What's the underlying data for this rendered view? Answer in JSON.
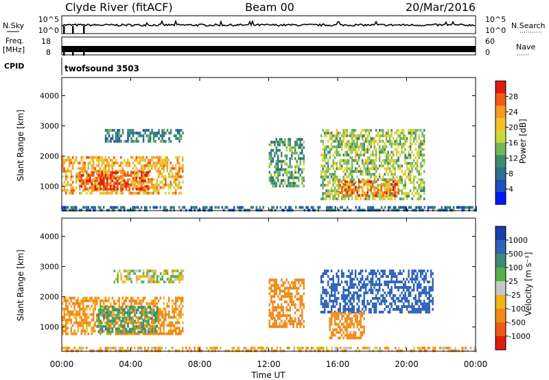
{
  "header": {
    "station": "Clyde River (fitACF)",
    "beam": "Beam 00",
    "date": "20/Mar/2016"
  },
  "strips": {
    "nsky": {
      "left_label": "N.Sky",
      "right_label": "N.Search",
      "ticks_left": [
        "10^5",
        "10^0"
      ],
      "ticks_right": [
        "10^5",
        "10^0"
      ]
    },
    "freq": {
      "left_label_1": "Freq.",
      "left_label_2": "[MHz]",
      "right_label": "Nave",
      "ticks_left": [
        "18",
        "8"
      ],
      "ticks_right": [
        "60",
        "0"
      ]
    },
    "cpid": {
      "label": "CPID",
      "program": "twofsound 3503"
    }
  },
  "chart_data": [
    {
      "type": "heatmap",
      "name": "power",
      "xlabel": "Time UT",
      "ylabel": "Slant Range [km]",
      "xlim": [
        0,
        24
      ],
      "ylim": [
        200,
        4600
      ],
      "x_ticks": [
        "00:00",
        "04:00",
        "08:00",
        "12:00",
        "16:00",
        "20:00",
        "00:00"
      ],
      "y_ticks": [
        1000,
        2000,
        3000,
        4000
      ],
      "colorbar": {
        "label": "Power [dB]",
        "ticks": [
          4,
          8,
          12,
          16,
          20,
          24,
          28
        ],
        "range": [
          0,
          32
        ],
        "colors": [
          "#0018ff",
          "#1f4fb8",
          "#2f6f8f",
          "#3f8a70",
          "#74b85a",
          "#c9d83a",
          "#f4c02a",
          "#f59a22",
          "#ef5a19",
          "#dd1a12"
        ]
      },
      "regions": [
        {
          "t0": 0.0,
          "t1": 7.0,
          "r0": 800,
          "r1": 2000,
          "value": 22
        },
        {
          "t0": 1.0,
          "t1": 5.0,
          "r0": 900,
          "r1": 1500,
          "value": 28
        },
        {
          "t0": 2.5,
          "t1": 7.0,
          "r0": 2500,
          "r1": 2900,
          "value": 10
        },
        {
          "t0": 12.0,
          "t1": 14.0,
          "r0": 1000,
          "r1": 2600,
          "value": 12
        },
        {
          "t0": 15.0,
          "t1": 21.0,
          "r0": 600,
          "r1": 2900,
          "value": 16
        },
        {
          "t0": 16.0,
          "t1": 19.5,
          "r0": 700,
          "r1": 1200,
          "value": 26
        },
        {
          "t0": 0.0,
          "t1": 24.0,
          "r0": 200,
          "r1": 350,
          "value": 8
        }
      ]
    },
    {
      "type": "heatmap",
      "name": "velocity",
      "xlabel": "Time UT",
      "ylabel": "Slant Range [km]",
      "xlim": [
        0,
        24
      ],
      "ylim": [
        200,
        4600
      ],
      "x_ticks": [
        "00:00",
        "04:00",
        "08:00",
        "12:00",
        "16:00",
        "20:00",
        "00:00"
      ],
      "y_ticks": [
        1000,
        2000,
        3000,
        4000
      ],
      "colorbar": {
        "label": "Velocity [m s⁻¹]",
        "ticks": [
          "1000",
          "500",
          "100",
          "25",
          "-25",
          "-100",
          "-500",
          "-1000"
        ],
        "colors": [
          "#1a3fa8",
          "#2f62b8",
          "#3f8a70",
          "#57b04a",
          "#c8c8c8",
          "#f2b418",
          "#f08a1a",
          "#ee5a18",
          "#e01a12"
        ]
      },
      "regions": [
        {
          "t0": 0.0,
          "t1": 7.0,
          "r0": 800,
          "r1": 2000,
          "value": -150
        },
        {
          "t0": 2.0,
          "t1": 5.5,
          "r0": 800,
          "r1": 1700,
          "value": 120
        },
        {
          "t0": 3.0,
          "t1": 7.0,
          "r0": 2500,
          "r1": 2900,
          "value": 0
        },
        {
          "t0": 12.0,
          "t1": 14.0,
          "r0": 1000,
          "r1": 2600,
          "value": -300
        },
        {
          "t0": 15.0,
          "t1": 21.5,
          "r0": 1500,
          "r1": 2900,
          "value": 800
        },
        {
          "t0": 15.5,
          "t1": 17.5,
          "r0": 600,
          "r1": 1500,
          "value": -400
        },
        {
          "t0": 0.0,
          "t1": 24.0,
          "r0": 200,
          "r1": 350,
          "value": -80
        }
      ]
    }
  ]
}
